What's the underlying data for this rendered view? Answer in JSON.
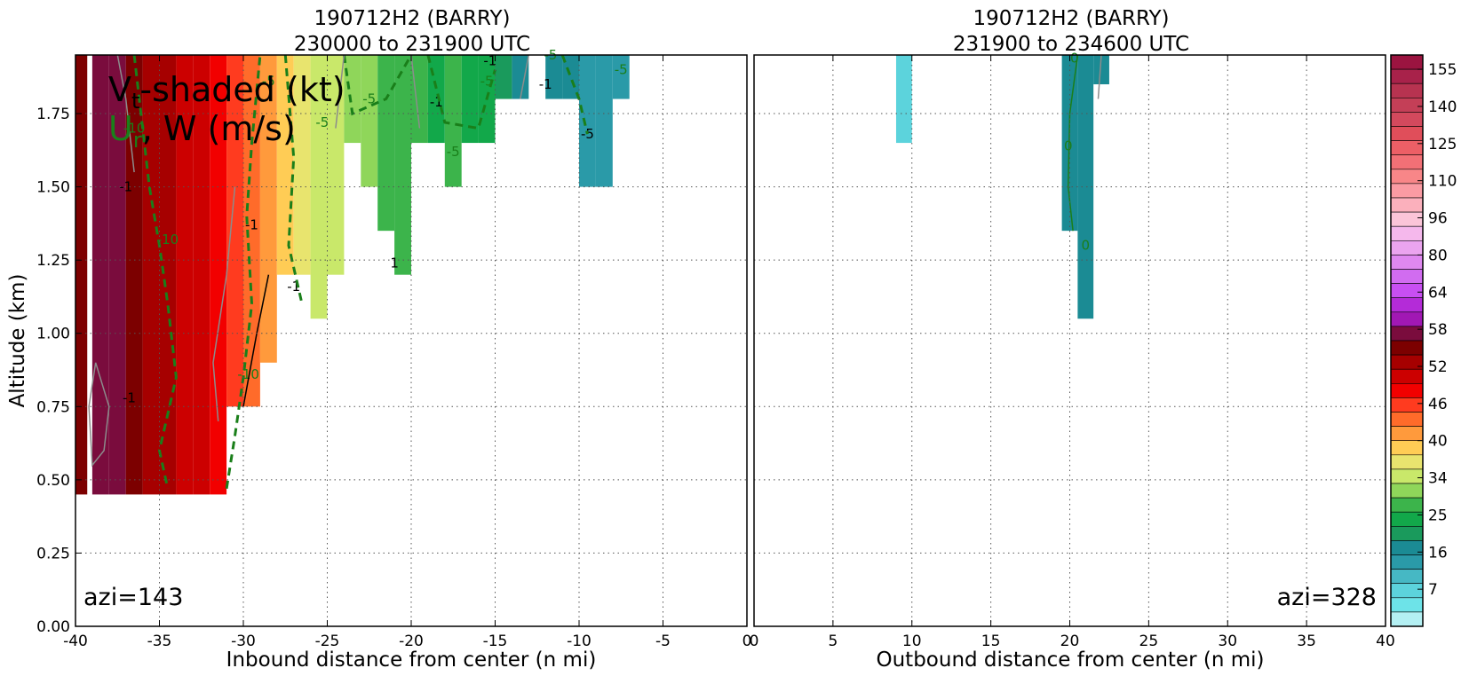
{
  "chart_data": [
    {
      "type": "heatmap",
      "title": [
        "190712H2 (BARRY)",
        "230000 to 231900 UTC"
      ],
      "xlabel": "Inbound distance from center (n mi)",
      "ylabel": "Altitude (km)",
      "xlim": [
        -40,
        0
      ],
      "ylim": [
        0,
        1.95
      ],
      "xticks": [
        "-40",
        "-35",
        "-30",
        "-25",
        "-20",
        "-15",
        "-10",
        "-5",
        "0"
      ],
      "yticks": [
        "0.00",
        "0.25",
        "0.50",
        "0.75",
        "1.00",
        "1.25",
        "1.50",
        "1.75"
      ],
      "grid": true,
      "overlay_text": {
        "line1_main": "V",
        "line1_sub": "t",
        "line1_rest": "-shaded (kt)",
        "line2_green": "U",
        "line2_sub": "r",
        "line2_rest": ", W (m/s)"
      },
      "annotation": "azi=143",
      "shaded_columns": [
        {
          "x": -39.8,
          "ybot": 0.45,
          "ytop": 1.95,
          "level": 58
        },
        {
          "x": -38.5,
          "ybot": 0.45,
          "ytop": 1.95,
          "level": 61
        },
        {
          "x": -37.5,
          "ybot": 0.45,
          "ytop": 1.95,
          "level": 61
        },
        {
          "x": -36.5,
          "ybot": 0.45,
          "ytop": 1.95,
          "level": 58
        },
        {
          "x": -35.5,
          "ybot": 0.45,
          "ytop": 1.95,
          "level": 55
        },
        {
          "x": -34.5,
          "ybot": 0.45,
          "ytop": 1.95,
          "level": 55
        },
        {
          "x": -33.5,
          "ybot": 0.45,
          "ytop": 1.95,
          "level": 52
        },
        {
          "x": -32.5,
          "ybot": 0.45,
          "ytop": 1.95,
          "level": 52
        },
        {
          "x": -31.5,
          "ybot": 0.45,
          "ytop": 1.95,
          "level": 49
        },
        {
          "x": -30.5,
          "ybot": 0.75,
          "ytop": 1.95,
          "level": 46
        },
        {
          "x": -29.5,
          "ybot": 0.75,
          "ytop": 1.95,
          "level": 43
        },
        {
          "x": -28.5,
          "ybot": 0.9,
          "ytop": 1.95,
          "level": 40
        },
        {
          "x": -27.5,
          "ybot": 1.2,
          "ytop": 1.95,
          "level": 37
        },
        {
          "x": -26.5,
          "ybot": 1.2,
          "ytop": 1.95,
          "level": 34
        },
        {
          "x": -25.5,
          "ybot": 1.05,
          "ytop": 1.95,
          "level": 31
        },
        {
          "x": -24.5,
          "ybot": 1.2,
          "ytop": 1.95,
          "level": 31
        },
        {
          "x": -23.5,
          "ybot": 1.65,
          "ytop": 1.95,
          "level": 28
        },
        {
          "x": -22.5,
          "ybot": 1.5,
          "ytop": 1.95,
          "level": 28
        },
        {
          "x": -21.5,
          "ybot": 1.35,
          "ytop": 1.95,
          "level": 25
        },
        {
          "x": -20.5,
          "ybot": 1.2,
          "ytop": 1.95,
          "level": 25
        },
        {
          "x": -19.5,
          "ybot": 1.65,
          "ytop": 1.95,
          "level": 25
        },
        {
          "x": -18.5,
          "ybot": 1.65,
          "ytop": 1.95,
          "level": 22
        },
        {
          "x": -17.5,
          "ybot": 1.5,
          "ytop": 1.95,
          "level": 25
        },
        {
          "x": -16.5,
          "ybot": 1.65,
          "ytop": 1.95,
          "level": 22
        },
        {
          "x": -15.5,
          "ybot": 1.65,
          "ytop": 1.95,
          "level": 22
        },
        {
          "x": -14.5,
          "ybot": 1.8,
          "ytop": 1.95,
          "level": 19
        },
        {
          "x": -13.5,
          "ybot": 1.8,
          "ytop": 1.95,
          "level": 16
        },
        {
          "x": -11.5,
          "ybot": 1.8,
          "ytop": 1.95,
          "level": 16
        },
        {
          "x": -10.5,
          "ybot": 1.8,
          "ytop": 1.95,
          "level": 16
        },
        {
          "x": -9.5,
          "ybot": 1.5,
          "ytop": 1.95,
          "level": 13
        },
        {
          "x": -8.5,
          "ybot": 1.5,
          "ytop": 1.95,
          "level": 13
        },
        {
          "x": -7.5,
          "ybot": 1.8,
          "ytop": 1.95,
          "level": 13
        }
      ],
      "contour_labels": [
        {
          "text": "-10",
          "x": -36.5,
          "y": 1.7,
          "color": "#1a7f1a"
        },
        {
          "text": "-1",
          "x": -37.0,
          "y": 1.5,
          "color": "#000000"
        },
        {
          "text": "-10",
          "x": -34.5,
          "y": 1.32,
          "color": "#1a7f1a"
        },
        {
          "text": "-1",
          "x": -29.5,
          "y": 1.37,
          "color": "#000000"
        },
        {
          "text": "-1",
          "x": -27.0,
          "y": 1.16,
          "color": "#000000"
        },
        {
          "text": "-10",
          "x": -29.7,
          "y": 0.86,
          "color": "#1a7f1a"
        },
        {
          "text": "-1",
          "x": -36.8,
          "y": 0.78,
          "color": "#000000"
        },
        {
          "text": "-5",
          "x": -28.5,
          "y": 1.86,
          "color": "#1a7f1a"
        },
        {
          "text": "-5",
          "x": -25.3,
          "y": 1.72,
          "color": "#1a7f1a"
        },
        {
          "text": "-5",
          "x": -22.5,
          "y": 1.8,
          "color": "#1a7f1a"
        },
        {
          "text": "-1",
          "x": -18.5,
          "y": 1.79,
          "color": "#000000"
        },
        {
          "text": "-5",
          "x": -17.5,
          "y": 1.62,
          "color": "#1a7f1a"
        },
        {
          "text": "-5",
          "x": -15.5,
          "y": 1.86,
          "color": "#1a7f1a"
        },
        {
          "text": "-1",
          "x": -15.3,
          "y": 1.93,
          "color": "#000000"
        },
        {
          "text": "-1",
          "x": -12.0,
          "y": 1.85,
          "color": "#000000"
        },
        {
          "text": "-5",
          "x": -11.7,
          "y": 1.95,
          "color": "#1a7f1a"
        },
        {
          "text": "-5",
          "x": -7.5,
          "y": 1.9,
          "color": "#1a7f1a"
        },
        {
          "text": "-5",
          "x": -9.5,
          "y": 1.68,
          "color": "#000000"
        },
        {
          "text": "1",
          "x": -21.0,
          "y": 1.24,
          "color": "#000000"
        }
      ]
    },
    {
      "type": "heatmap",
      "title": [
        "190712H2 (BARRY)",
        "231900 to 234600 UTC"
      ],
      "xlabel": "Outbound distance from center (n mi)",
      "ylabel": "",
      "xlim": [
        0,
        40
      ],
      "ylim": [
        0,
        1.95
      ],
      "xticks": [
        "0",
        "5",
        "10",
        "15",
        "20",
        "25",
        "30",
        "35",
        "40"
      ],
      "grid": true,
      "annotation": "azi=328",
      "shaded_columns": [
        {
          "x": 9.5,
          "ybot": 1.65,
          "ytop": 1.95,
          "level": 7
        },
        {
          "x": 20.0,
          "ybot": 1.35,
          "ytop": 1.95,
          "level": 16
        },
        {
          "x": 21.0,
          "ybot": 1.05,
          "ytop": 1.95,
          "level": 16
        },
        {
          "x": 22.0,
          "ybot": 1.85,
          "ytop": 1.95,
          "level": 16
        }
      ],
      "contour_labels": [
        {
          "text": "0",
          "x": 19.9,
          "y": 1.64,
          "color": "#1a7f1a"
        },
        {
          "text": "0",
          "x": 21.0,
          "y": 1.3,
          "color": "#1a7f1a"
        },
        {
          "text": "0",
          "x": 20.3,
          "y": 1.94,
          "color": "#1a7f1a"
        }
      ]
    }
  ],
  "colorbar": {
    "tick_labels": [
      "155",
      "140",
      "125",
      "110",
      "96",
      "80",
      "64",
      "58",
      "52",
      "46",
      "40",
      "34",
      "25",
      "16",
      "7"
    ],
    "levels": [
      155,
      150,
      145,
      140,
      135,
      130,
      125,
      120,
      115,
      110,
      105,
      101,
      96,
      91,
      86,
      80,
      75,
      70,
      64,
      61,
      58,
      55,
      52,
      49,
      46,
      43,
      40,
      37,
      34,
      31,
      28,
      25,
      22,
      19,
      16,
      13,
      10,
      7
    ],
    "colors": [
      "#9b1440",
      "#a8224a",
      "#b73350",
      "#c43f57",
      "#d3495d",
      "#e04e5a",
      "#ec5f66",
      "#f27076",
      "#f88688",
      "#fa9ba3",
      "#fbb0bc",
      "#fbc5d8",
      "#f5b8ec",
      "#eba4ef",
      "#df88f0",
      "#d16cf0",
      "#c84ff2",
      "#b42bd8",
      "#a118b4",
      "#7a0c3d",
      "#7c0000",
      "#a60000",
      "#cc0000",
      "#f20000",
      "#ff3b1f",
      "#ff6b2a",
      "#ff9a3c",
      "#ffcc55",
      "#e8e46e",
      "#c9e86a",
      "#8fd65a",
      "#3cb44b",
      "#12a84a",
      "#1a9a5c",
      "#1b8b94",
      "#2a9aa8",
      "#46b8c4",
      "#5cd3dc",
      "#6de3e8",
      "#b4f0f3"
    ]
  },
  "colors": {
    "red": "#f20000",
    "green_contour": "#1a7f1a",
    "gray_contour": "#8c8c8c"
  }
}
